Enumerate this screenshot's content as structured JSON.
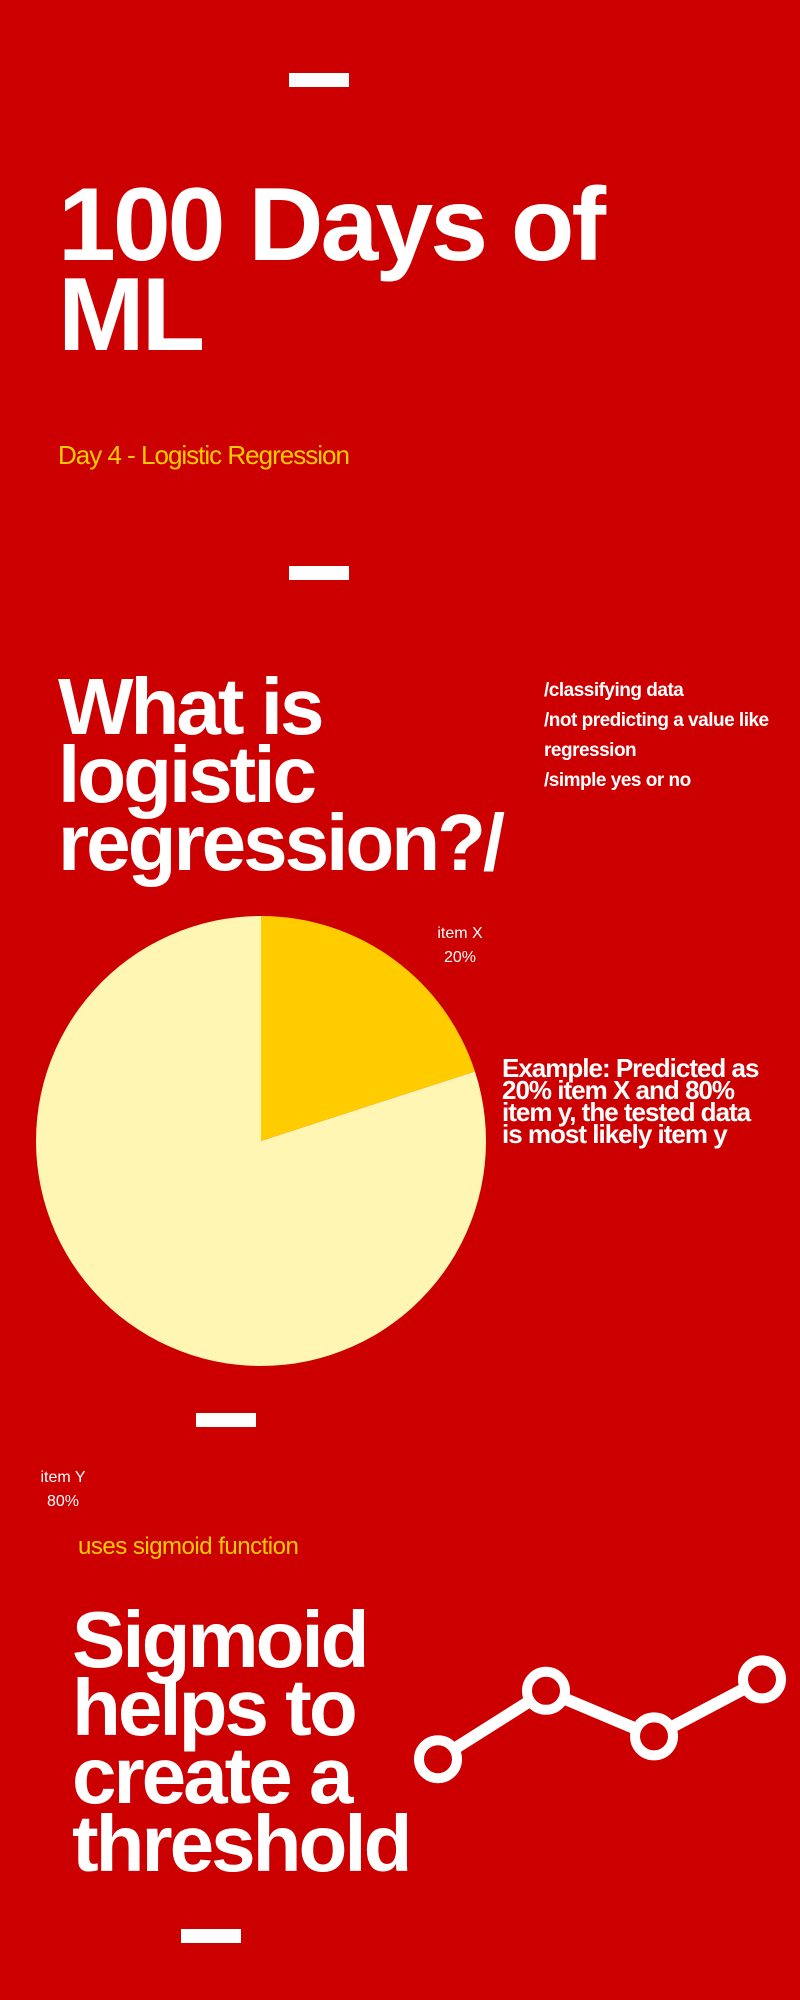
{
  "header": {
    "title": "100 Days of ML",
    "subtitle": "Day 4 - Logistic Regression"
  },
  "section1": {
    "heading": "What is logistic regression?/",
    "notes": [
      "/classifying data",
      "/not predicting a value like regression",
      "/simple yes or no"
    ]
  },
  "example": {
    "text": "Example:  Predicted as 20% item X and 80% item y, the tested data is most likely item y"
  },
  "chart_data": {
    "type": "pie",
    "categories": [
      "item X",
      "item Y"
    ],
    "values": [
      20,
      80
    ],
    "value_labels": [
      "20%",
      "80%"
    ],
    "colors": [
      "#ffcc00",
      "#fff6b4"
    ]
  },
  "section2": {
    "note": "uses sigmoid function",
    "heading": "Sigmoid helps to create a threshold"
  },
  "theme": {
    "background": "#cc0000",
    "accent": "#ffcc00",
    "text": "#ffffff"
  },
  "decor": {
    "line_icon": "line-graph-icon",
    "line_points": [
      0.2,
      0.8,
      0.4,
      0.9
    ]
  }
}
